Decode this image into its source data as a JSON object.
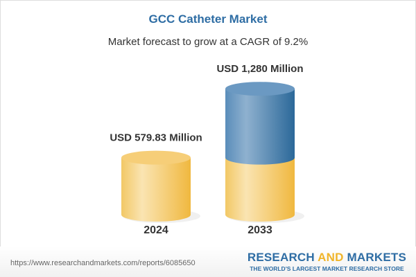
{
  "title": "GCC Catheter Market",
  "subtitle": "Market forecast to grow at a CAGR of 9.2%",
  "chart_data": {
    "type": "bar",
    "style": "3d-cylinder",
    "categories": [
      "2024",
      "2033"
    ],
    "values": [
      579.83,
      1280
    ],
    "data_labels": [
      "USD 579.83 Million",
      "USD 1,280 Million"
    ],
    "unit": "USD Million",
    "colors": {
      "base": "#f3c660",
      "growth": "#4f86b5"
    }
  },
  "footer": {
    "url": "https://www.researchandmarkets.com/reports/6085650",
    "logo_part1": "RESEARCH ",
    "logo_part2": "AND",
    "logo_part3": " MARKETS",
    "tagline": "THE WORLD'S LARGEST MARKET RESEARCH STORE"
  }
}
